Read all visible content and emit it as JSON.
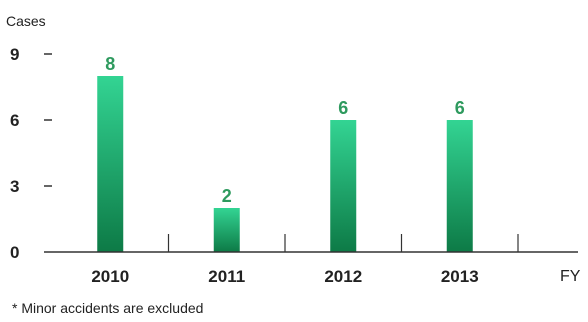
{
  "colors": {
    "bar_top": "#33d493",
    "bar_bottom": "#0d7a46",
    "value_text": "#2e9a5e",
    "axis": "#333333"
  },
  "chart_data": {
    "type": "bar",
    "categories": [
      "2010",
      "2011",
      "2012",
      "2013"
    ],
    "values": [
      8,
      2,
      6,
      6
    ],
    "ylabel": "Cases",
    "xlabel": "FY",
    "ylim": [
      0,
      9
    ],
    "yticks": [
      "0",
      "3",
      "6",
      "9"
    ],
    "data_labels": [
      "8",
      "2",
      "6",
      "6"
    ],
    "grid": false,
    "legend": false
  },
  "footnote": "* Minor accidents are excluded"
}
